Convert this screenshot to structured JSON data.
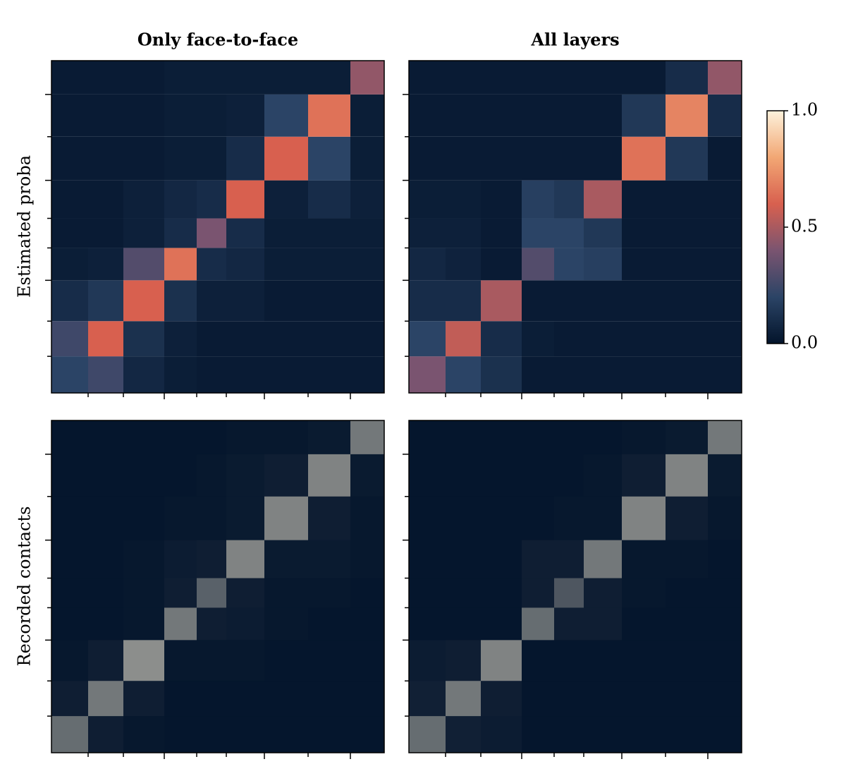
{
  "chart_data": {
    "type": "heatmap",
    "col_titles": [
      "Only face-to-face",
      "All layers"
    ],
    "row_labels": [
      "Estimated proba",
      "Recorded contacts"
    ],
    "n_nodes": 236,
    "group_bounds": [
      0,
      26,
      51,
      80,
      103,
      124,
      151,
      182,
      212,
      236
    ],
    "xticks": [
      26,
      51,
      80,
      103,
      124,
      151,
      182,
      212
    ],
    "yticks": [
      26,
      51,
      80,
      103,
      124,
      151,
      182,
      212
    ],
    "major_ticks": [
      80,
      151,
      212
    ],
    "colormap": [
      "#03142b",
      "#2b4466",
      "#7a5470",
      "#d8604f",
      "#f2a774",
      "#fdf2dc"
    ],
    "contact_color": "#fdf2dc",
    "clim": [
      0,
      1
    ],
    "colorbar_ticks": [
      {
        "value": 0,
        "label": "0.0"
      },
      0.5,
      {
        "value": 1,
        "label": "1.0"
      }
    ],
    "panels": [
      {
        "kind": "estimated",
        "values": [
          [
            0.2,
            0.25,
            0.08,
            0.04,
            0.03,
            0.03,
            0.03,
            0.03,
            0.03
          ],
          [
            0.25,
            0.6,
            0.12,
            0.05,
            0.03,
            0.03,
            0.03,
            0.03,
            0.03
          ],
          [
            0.1,
            0.15,
            0.6,
            0.12,
            0.05,
            0.05,
            0.03,
            0.03,
            0.03
          ],
          [
            0.04,
            0.05,
            0.3,
            0.65,
            0.1,
            0.08,
            0.04,
            0.04,
            0.04
          ],
          [
            0.03,
            0.03,
            0.05,
            0.1,
            0.4,
            0.1,
            0.04,
            0.04,
            0.04
          ],
          [
            0.03,
            0.03,
            0.05,
            0.08,
            0.1,
            0.6,
            0.05,
            0.1,
            0.05
          ],
          [
            0.03,
            0.03,
            0.03,
            0.04,
            0.04,
            0.1,
            0.6,
            0.2,
            0.04
          ],
          [
            0.03,
            0.03,
            0.03,
            0.04,
            0.04,
            0.05,
            0.2,
            0.65,
            0.04
          ],
          [
            0.03,
            0.03,
            0.03,
            0.04,
            0.04,
            0.04,
            0.04,
            0.04,
            0.45
          ]
        ]
      },
      {
        "kind": "estimated",
        "values": [
          [
            0.4,
            0.2,
            0.12,
            0.03,
            0.03,
            0.03,
            0.03,
            0.03,
            0.03
          ],
          [
            0.2,
            0.55,
            0.1,
            0.04,
            0.03,
            0.03,
            0.03,
            0.03,
            0.03
          ],
          [
            0.1,
            0.1,
            0.5,
            0.03,
            0.03,
            0.03,
            0.03,
            0.03,
            0.03
          ],
          [
            0.08,
            0.06,
            0.03,
            0.3,
            0.2,
            0.18,
            0.03,
            0.03,
            0.03
          ],
          [
            0.05,
            0.05,
            0.03,
            0.2,
            0.2,
            0.15,
            0.03,
            0.03,
            0.03
          ],
          [
            0.04,
            0.04,
            0.03,
            0.18,
            0.15,
            0.5,
            0.03,
            0.03,
            0.03
          ],
          [
            0.03,
            0.03,
            0.03,
            0.03,
            0.03,
            0.03,
            0.65,
            0.15,
            0.03
          ],
          [
            0.03,
            0.03,
            0.03,
            0.03,
            0.03,
            0.03,
            0.15,
            0.7,
            0.1
          ],
          [
            0.03,
            0.03,
            0.03,
            0.03,
            0.03,
            0.03,
            0.03,
            0.1,
            0.45
          ]
        ]
      },
      {
        "kind": "contacts",
        "values": [
          [
            0.4,
            0.05,
            0.02,
            0.01,
            0.01,
            0.01,
            0.01,
            0.01,
            0.01
          ],
          [
            0.05,
            0.45,
            0.05,
            0.01,
            0.01,
            0.01,
            0.01,
            0.01,
            0.01
          ],
          [
            0.02,
            0.05,
            0.55,
            0.02,
            0.02,
            0.02,
            0.01,
            0.01,
            0.01
          ],
          [
            0.01,
            0.01,
            0.02,
            0.45,
            0.05,
            0.04,
            0.02,
            0.01,
            0.01
          ],
          [
            0.01,
            0.01,
            0.02,
            0.05,
            0.35,
            0.05,
            0.02,
            0.02,
            0.01
          ],
          [
            0.01,
            0.01,
            0.02,
            0.04,
            0.05,
            0.5,
            0.03,
            0.03,
            0.02
          ],
          [
            0.01,
            0.01,
            0.01,
            0.02,
            0.02,
            0.03,
            0.5,
            0.05,
            0.02
          ],
          [
            0.01,
            0.01,
            0.01,
            0.01,
            0.02,
            0.03,
            0.05,
            0.5,
            0.03
          ],
          [
            0.01,
            0.01,
            0.01,
            0.01,
            0.01,
            0.02,
            0.02,
            0.03,
            0.45
          ]
        ]
      },
      {
        "kind": "contacts",
        "values": [
          [
            0.4,
            0.06,
            0.04,
            0.01,
            0.01,
            0.01,
            0.01,
            0.01,
            0.01
          ],
          [
            0.06,
            0.45,
            0.05,
            0.01,
            0.01,
            0.01,
            0.01,
            0.01,
            0.01
          ],
          [
            0.04,
            0.05,
            0.5,
            0.01,
            0.01,
            0.01,
            0.01,
            0.01,
            0.01
          ],
          [
            0.01,
            0.01,
            0.01,
            0.4,
            0.05,
            0.05,
            0.01,
            0.01,
            0.01
          ],
          [
            0.01,
            0.01,
            0.01,
            0.05,
            0.3,
            0.05,
            0.02,
            0.01,
            0.01
          ],
          [
            0.01,
            0.01,
            0.01,
            0.05,
            0.05,
            0.45,
            0.02,
            0.02,
            0.01
          ],
          [
            0.01,
            0.01,
            0.01,
            0.01,
            0.02,
            0.02,
            0.5,
            0.05,
            0.02
          ],
          [
            0.01,
            0.01,
            0.01,
            0.01,
            0.01,
            0.02,
            0.05,
            0.5,
            0.03
          ],
          [
            0.01,
            0.01,
            0.01,
            0.01,
            0.01,
            0.01,
            0.02,
            0.03,
            0.45
          ]
        ]
      }
    ]
  }
}
